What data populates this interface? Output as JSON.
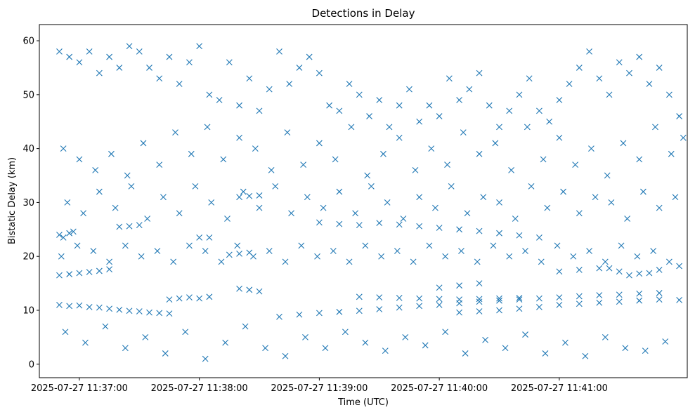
{
  "chart_data": {
    "type": "scatter",
    "title": "Detections in Delay",
    "xlabel": "Time (UTC)",
    "ylabel": "Bistatic Delay (km)",
    "marker": "x",
    "color": "#1f77b4",
    "x_unit": "seconds",
    "xlim": [
      -20,
      304
    ],
    "ylim": [
      -2.5,
      63
    ],
    "x_tick_labels": [
      "2025-07-27 11:37:00",
      "2025-07-27 11:38:00",
      "2025-07-27 11:39:00",
      "2025-07-27 11:40:00",
      "2025-07-27 11:41:00"
    ],
    "x_tick_values": [
      0,
      60,
      120,
      180,
      240
    ],
    "y_ticks": [
      0,
      10,
      20,
      30,
      40,
      50,
      60
    ],
    "grid": false,
    "series": [
      {
        "points": [
          [
            -10,
            11
          ],
          [
            -5,
            10.8
          ],
          [
            0,
            10.9
          ],
          [
            5,
            10.6
          ],
          [
            10,
            10.5
          ],
          [
            15,
            10.3
          ],
          [
            20,
            10.1
          ],
          [
            25,
            9.9
          ],
          [
            30,
            9.8
          ],
          [
            35,
            9.6
          ],
          [
            40,
            9.5
          ],
          [
            45,
            9.4
          ],
          [
            -10,
            16.5
          ],
          [
            -5,
            16.7
          ],
          [
            0,
            16.9
          ],
          [
            5,
            17.1
          ],
          [
            10,
            17.3
          ],
          [
            15,
            17.6
          ],
          [
            -10,
            24
          ],
          [
            -5,
            24.3
          ],
          [
            -8,
            23.5
          ],
          [
            -3,
            24.6
          ],
          [
            20,
            25.5
          ],
          [
            25,
            25.6
          ],
          [
            30,
            25.8
          ],
          [
            60,
            23.5
          ],
          [
            65,
            23.5
          ],
          [
            75,
            20.3
          ],
          [
            80,
            20.5
          ],
          [
            85,
            20.7
          ],
          [
            45,
            12
          ],
          [
            50,
            12.2
          ],
          [
            55,
            12.4
          ],
          [
            60,
            12.2
          ],
          [
            65,
            12.5
          ],
          [
            80,
            31
          ],
          [
            85,
            31.2
          ],
          [
            90,
            31.3
          ],
          [
            80,
            14
          ],
          [
            85,
            13.8
          ],
          [
            90,
            13.5
          ],
          [
            100,
            8.8
          ],
          [
            110,
            9.2
          ],
          [
            120,
            9.5
          ],
          [
            130,
            9.7
          ],
          [
            140,
            9.9
          ],
          [
            150,
            10.2
          ],
          [
            160,
            10.5
          ],
          [
            170,
            10.8
          ],
          [
            180,
            11
          ],
          [
            190,
            11.3
          ],
          [
            200,
            11.6
          ],
          [
            210,
            11.8
          ],
          [
            220,
            12
          ],
          [
            230,
            12.2
          ],
          [
            240,
            12.4
          ],
          [
            250,
            12.6
          ],
          [
            260,
            12.8
          ],
          [
            270,
            12.9
          ],
          [
            280,
            13.1
          ],
          [
            290,
            13.2
          ],
          [
            120,
            26.3
          ],
          [
            130,
            26
          ],
          [
            140,
            25.8
          ],
          [
            150,
            26.2
          ],
          [
            160,
            25.9
          ],
          [
            170,
            25.6
          ],
          [
            180,
            25.3
          ],
          [
            190,
            25
          ],
          [
            200,
            24.7
          ],
          [
            210,
            24.3
          ],
          [
            220,
            23.9
          ],
          [
            230,
            23.5
          ],
          [
            140,
            12.5
          ],
          [
            150,
            12.4
          ],
          [
            160,
            12.3
          ],
          [
            170,
            12.2
          ],
          [
            180,
            12.1
          ],
          [
            180,
            14.2
          ],
          [
            190,
            14.6
          ],
          [
            200,
            15
          ],
          [
            190,
            9.6
          ],
          [
            200,
            9.8
          ],
          [
            210,
            10
          ],
          [
            220,
            10.3
          ],
          [
            230,
            10.6
          ],
          [
            190,
            12
          ],
          [
            200,
            12.1
          ],
          [
            210,
            12.2
          ],
          [
            220,
            12.3
          ],
          [
            240,
            17.2
          ],
          [
            250,
            17.5
          ],
          [
            260,
            17.8
          ],
          [
            270,
            17.2
          ],
          [
            280,
            16.8
          ],
          [
            290,
            17.5
          ],
          [
            300,
            18.2
          ],
          [
            265,
            17.8
          ],
          [
            275,
            16.5
          ],
          [
            285,
            16.9
          ],
          [
            240,
            11
          ],
          [
            250,
            11.2
          ],
          [
            260,
            11.4
          ],
          [
            270,
            11.6
          ],
          [
            280,
            11.8
          ],
          [
            290,
            12
          ],
          [
            300,
            11.9
          ],
          [
            -10,
            58
          ],
          [
            -5,
            57
          ],
          [
            0,
            56
          ],
          [
            5,
            58
          ],
          [
            10,
            54
          ],
          [
            15,
            57
          ],
          [
            20,
            55
          ],
          [
            25,
            59
          ],
          [
            30,
            58
          ],
          [
            35,
            55
          ],
          [
            40,
            53
          ],
          [
            45,
            57
          ],
          [
            50,
            52
          ],
          [
            55,
            56
          ],
          [
            60,
            59
          ],
          [
            65,
            50
          ],
          [
            70,
            49
          ],
          [
            75,
            56
          ],
          [
            80,
            48
          ],
          [
            85,
            53
          ],
          [
            90,
            47
          ],
          [
            95,
            51
          ],
          [
            100,
            58
          ],
          [
            105,
            52
          ],
          [
            110,
            55
          ],
          [
            115,
            57
          ],
          [
            120,
            54
          ],
          [
            125,
            48
          ],
          [
            130,
            47
          ],
          [
            135,
            52
          ],
          [
            140,
            50
          ],
          [
            145,
            46
          ],
          [
            150,
            49
          ],
          [
            155,
            44
          ],
          [
            160,
            48
          ],
          [
            165,
            51
          ],
          [
            170,
            45
          ],
          [
            175,
            48
          ],
          [
            180,
            46
          ],
          [
            185,
            53
          ],
          [
            190,
            49
          ],
          [
            195,
            51
          ],
          [
            200,
            54
          ],
          [
            205,
            48
          ],
          [
            210,
            44
          ],
          [
            215,
            47
          ],
          [
            220,
            50
          ],
          [
            225,
            53
          ],
          [
            230,
            47
          ],
          [
            235,
            45
          ],
          [
            240,
            49
          ],
          [
            245,
            52
          ],
          [
            250,
            55
          ],
          [
            255,
            58
          ],
          [
            260,
            53
          ],
          [
            265,
            50
          ],
          [
            270,
            56
          ],
          [
            275,
            54
          ],
          [
            280,
            57
          ],
          [
            285,
            52
          ],
          [
            290,
            55
          ],
          [
            295,
            50
          ],
          [
            300,
            46
          ],
          [
            -8,
            40
          ],
          [
            0,
            38
          ],
          [
            8,
            36
          ],
          [
            16,
            39
          ],
          [
            24,
            35
          ],
          [
            32,
            41
          ],
          [
            40,
            37
          ],
          [
            48,
            43
          ],
          [
            56,
            39
          ],
          [
            64,
            44
          ],
          [
            72,
            38
          ],
          [
            80,
            42
          ],
          [
            88,
            40
          ],
          [
            96,
            36
          ],
          [
            104,
            43
          ],
          [
            112,
            37
          ],
          [
            120,
            41
          ],
          [
            128,
            38
          ],
          [
            136,
            44
          ],
          [
            144,
            35
          ],
          [
            152,
            39
          ],
          [
            160,
            42
          ],
          [
            168,
            36
          ],
          [
            176,
            40
          ],
          [
            184,
            37
          ],
          [
            192,
            43
          ],
          [
            200,
            39
          ],
          [
            208,
            41
          ],
          [
            216,
            36
          ],
          [
            224,
            44
          ],
          [
            232,
            38
          ],
          [
            240,
            42
          ],
          [
            248,
            37
          ],
          [
            256,
            40
          ],
          [
            264,
            35
          ],
          [
            272,
            41
          ],
          [
            280,
            38
          ],
          [
            288,
            44
          ],
          [
            296,
            39
          ],
          [
            302,
            42
          ],
          [
            -6,
            30
          ],
          [
            2,
            28
          ],
          [
            10,
            32
          ],
          [
            18,
            29
          ],
          [
            26,
            33
          ],
          [
            34,
            27
          ],
          [
            42,
            31
          ],
          [
            50,
            28
          ],
          [
            58,
            33
          ],
          [
            66,
            30
          ],
          [
            74,
            27
          ],
          [
            82,
            32
          ],
          [
            90,
            29
          ],
          [
            98,
            33
          ],
          [
            106,
            28
          ],
          [
            114,
            31
          ],
          [
            122,
            29
          ],
          [
            130,
            32
          ],
          [
            138,
            28
          ],
          [
            146,
            33
          ],
          [
            154,
            30
          ],
          [
            162,
            27
          ],
          [
            170,
            31
          ],
          [
            178,
            29
          ],
          [
            186,
            33
          ],
          [
            194,
            28
          ],
          [
            202,
            31
          ],
          [
            210,
            30
          ],
          [
            218,
            27
          ],
          [
            226,
            33
          ],
          [
            234,
            29
          ],
          [
            242,
            32
          ],
          [
            250,
            28
          ],
          [
            258,
            31
          ],
          [
            266,
            30
          ],
          [
            274,
            27
          ],
          [
            282,
            32
          ],
          [
            290,
            29
          ],
          [
            298,
            31
          ],
          [
            -9,
            20
          ],
          [
            -1,
            22
          ],
          [
            7,
            21
          ],
          [
            15,
            19
          ],
          [
            23,
            22
          ],
          [
            31,
            20
          ],
          [
            39,
            21
          ],
          [
            47,
            19
          ],
          [
            55,
            22
          ],
          [
            63,
            21
          ],
          [
            71,
            19
          ],
          [
            79,
            22
          ],
          [
            87,
            20
          ],
          [
            95,
            21
          ],
          [
            103,
            19
          ],
          [
            111,
            22
          ],
          [
            119,
            20
          ],
          [
            127,
            21
          ],
          [
            135,
            19
          ],
          [
            143,
            22
          ],
          [
            151,
            20
          ],
          [
            159,
            21
          ],
          [
            167,
            19
          ],
          [
            175,
            22
          ],
          [
            183,
            20
          ],
          [
            191,
            21
          ],
          [
            199,
            19
          ],
          [
            207,
            22
          ],
          [
            215,
            20
          ],
          [
            223,
            21
          ],
          [
            231,
            19
          ],
          [
            239,
            22
          ],
          [
            247,
            20
          ],
          [
            255,
            21
          ],
          [
            263,
            19
          ],
          [
            271,
            22
          ],
          [
            279,
            20
          ],
          [
            287,
            21
          ],
          [
            295,
            19
          ],
          [
            -7,
            6
          ],
          [
            3,
            4
          ],
          [
            13,
            7
          ],
          [
            23,
            3
          ],
          [
            33,
            5
          ],
          [
            43,
            2
          ],
          [
            53,
            6
          ],
          [
            63,
            1
          ],
          [
            73,
            4
          ],
          [
            83,
            7
          ],
          [
            93,
            3
          ],
          [
            103,
            1.5
          ],
          [
            113,
            5
          ],
          [
            123,
            3
          ],
          [
            133,
            6
          ],
          [
            143,
            4
          ],
          [
            153,
            2.5
          ],
          [
            163,
            5
          ],
          [
            173,
            3.5
          ],
          [
            183,
            6
          ],
          [
            193,
            2
          ],
          [
            203,
            4.5
          ],
          [
            213,
            3
          ],
          [
            223,
            5.5
          ],
          [
            233,
            2
          ],
          [
            243,
            4
          ],
          [
            253,
            1.5
          ],
          [
            263,
            5
          ],
          [
            273,
            3
          ],
          [
            283,
            2.5
          ],
          [
            293,
            4.2
          ]
        ]
      }
    ]
  }
}
